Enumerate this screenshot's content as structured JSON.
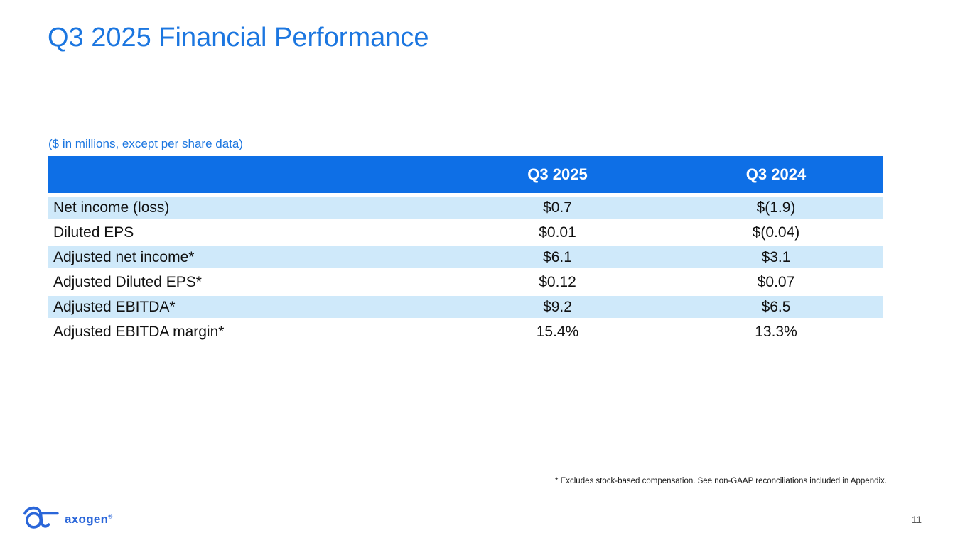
{
  "slide": {
    "title": "Q3 2025 Financial Performance",
    "units_note": "($ in millions, except per share data)",
    "footnote": "* Excludes stock-based compensation. See non-GAAP reconciliations included in Appendix.",
    "page_number": "11",
    "logo_text": "axogen",
    "logo_trademark": "®"
  },
  "colors": {
    "title_blue": "#1b76e0",
    "table_header_blue": "#0e6fe6",
    "row_stripe_blue": "#cfe9fa",
    "logo_blue": "#2a66d9",
    "body_text": "#111111",
    "page_number_gray": "#595959"
  },
  "chart_data": {
    "type": "table",
    "title": "Q3 2025 Financial Performance",
    "units": "$ in millions, except per share data",
    "columns": [
      "",
      "Q3 2025",
      "Q3 2024"
    ],
    "rows": [
      [
        "Net income (loss)",
        "$0.7",
        "$(1.9)"
      ],
      [
        "Diluted EPS",
        "$0.01",
        "$(0.04)"
      ],
      [
        "Adjusted net income*",
        "$6.1",
        "$3.1"
      ],
      [
        "Adjusted Diluted EPS*",
        "$0.12",
        "$0.07"
      ],
      [
        "Adjusted EBITDA*",
        "$9.2",
        "$6.5"
      ],
      [
        "Adjusted EBITDA margin*",
        "15.4%",
        "13.3%"
      ]
    ],
    "layout": {
      "header_bg": "#0e6fe6",
      "stripe_bg": "#cfe9fa",
      "stripe_rows": [
        0,
        2,
        4
      ]
    }
  }
}
